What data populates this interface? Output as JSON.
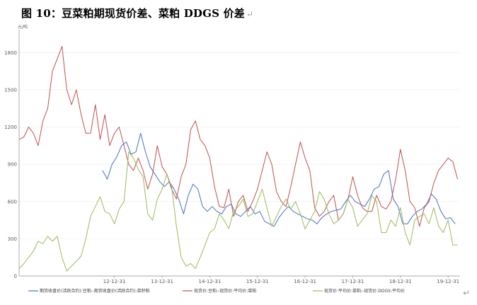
{
  "title": "图 10：豆菜粕期现货价差、菜粕 DDGS 价差",
  "return_mark": "↵",
  "chart_data": {
    "type": "line",
    "unit_label": "元/吨",
    "ylim": [
      0,
      1950
    ],
    "yticks": [
      0,
      300,
      600,
      900,
      1200,
      1500,
      1800
    ],
    "xlim": [
      2011.0,
      2020.25
    ],
    "xticks": [
      {
        "label": "12-12-31",
        "x": 2013.0
      },
      {
        "label": "13-12-31",
        "x": 2014.0
      },
      {
        "label": "14-12-31",
        "x": 2015.0
      },
      {
        "label": "15-12-31",
        "x": 2016.0
      },
      {
        "label": "16-12-31",
        "x": 2017.0
      },
      {
        "label": "17-12-31",
        "x": 2018.0
      },
      {
        "label": "18-12-31",
        "x": 2019.0
      },
      {
        "label": "19-12-31",
        "x": 2020.0
      }
    ],
    "legend_position": "bottom",
    "series": [
      {
        "name": "期货收盘价(活跃合约):豆粕:-期货收盘价(活跃合约):菜籽粕",
        "color": "#4472c4",
        "x": [
          2012.75,
          2012.85,
          2012.95,
          2013.05,
          2013.15,
          2013.25,
          2013.35,
          2013.45,
          2013.55,
          2013.65,
          2013.75,
          2013.85,
          2013.95,
          2014.05,
          2014.15,
          2014.25,
          2014.35,
          2014.45,
          2014.55,
          2014.65,
          2014.75,
          2014.85,
          2014.95,
          2015.05,
          2015.15,
          2015.25,
          2015.35,
          2015.45,
          2015.55,
          2015.65,
          2015.75,
          2015.85,
          2015.95,
          2016.05,
          2016.15,
          2016.25,
          2016.35,
          2016.45,
          2016.55,
          2016.65,
          2016.75,
          2016.85,
          2016.95,
          2017.05,
          2017.15,
          2017.25,
          2017.35,
          2017.45,
          2017.55,
          2017.65,
          2017.75,
          2017.85,
          2017.95,
          2018.05,
          2018.15,
          2018.25,
          2018.35,
          2018.45,
          2018.55,
          2018.65,
          2018.75,
          2018.85,
          2018.95,
          2019.05,
          2019.15,
          2019.25,
          2019.35,
          2019.45,
          2019.55,
          2019.65,
          2019.75,
          2019.85,
          2019.95,
          2020.05,
          2020.15
        ],
        "y": [
          850,
          780,
          900,
          960,
          1050,
          1080,
          980,
          1000,
          1150,
          1000,
          880,
          820,
          760,
          720,
          760,
          700,
          620,
          500,
          650,
          740,
          700,
          560,
          520,
          560,
          520,
          500,
          560,
          580,
          500,
          480,
          520,
          560,
          500,
          520,
          440,
          420,
          400,
          470,
          520,
          560,
          520,
          500,
          480,
          460,
          450,
          420,
          470,
          500,
          520,
          530,
          540,
          600,
          650,
          600,
          580,
          560,
          620,
          700,
          720,
          820,
          850,
          620,
          560,
          420,
          420,
          480,
          520,
          540,
          580,
          660,
          620,
          520,
          460,
          470,
          420
        ]
      },
      {
        "name": "现货价:豆粕:-现货价:平均价:菜粕",
        "color": "#c0504d",
        "x": [
          2011.0,
          2011.1,
          2011.2,
          2011.3,
          2011.4,
          2011.5,
          2011.6,
          2011.7,
          2011.8,
          2011.9,
          2012.0,
          2012.1,
          2012.2,
          2012.3,
          2012.4,
          2012.5,
          2012.6,
          2012.7,
          2012.8,
          2012.9,
          2013.0,
          2013.1,
          2013.2,
          2013.3,
          2013.4,
          2013.5,
          2013.6,
          2013.7,
          2013.8,
          2013.9,
          2014.0,
          2014.1,
          2014.2,
          2014.3,
          2014.4,
          2014.5,
          2014.6,
          2014.7,
          2014.8,
          2014.9,
          2015.0,
          2015.1,
          2015.2,
          2015.3,
          2015.4,
          2015.5,
          2015.6,
          2015.7,
          2015.8,
          2015.9,
          2016.0,
          2016.1,
          2016.2,
          2016.3,
          2016.4,
          2016.5,
          2016.6,
          2016.7,
          2016.8,
          2016.9,
          2017.0,
          2017.1,
          2017.2,
          2017.3,
          2017.4,
          2017.5,
          2017.6,
          2017.7,
          2017.8,
          2017.9,
          2018.0,
          2018.1,
          2018.2,
          2018.3,
          2018.4,
          2018.5,
          2018.6,
          2018.7,
          2018.8,
          2018.9,
          2019.0,
          2019.1,
          2019.2,
          2019.3,
          2019.4,
          2019.5,
          2019.6,
          2019.7,
          2019.8,
          2019.9,
          2020.0,
          2020.1,
          2020.2
        ],
        "y": [
          1100,
          1120,
          1200,
          1150,
          1050,
          1250,
          1350,
          1650,
          1750,
          1850,
          1500,
          1380,
          1500,
          1300,
          1150,
          1150,
          1380,
          1100,
          1300,
          1050,
          1150,
          1200,
          1050,
          900,
          850,
          950,
          850,
          700,
          820,
          1050,
          880,
          820,
          700,
          620,
          800,
          900,
          1180,
          1250,
          1100,
          1050,
          950,
          720,
          560,
          550,
          700,
          480,
          600,
          650,
          520,
          600,
          700,
          850,
          1000,
          900,
          680,
          600,
          560,
          720,
          900,
          1080,
          950,
          850,
          550,
          480,
          520,
          600,
          650,
          450,
          500,
          620,
          800,
          650,
          550,
          520,
          520,
          650,
          560,
          540,
          600,
          780,
          1020,
          850,
          600,
          550,
          400,
          550,
          600,
          750,
          850,
          900,
          950,
          920,
          780
        ]
      },
      {
        "name": "现货价:平均价:菜粕:-现货价:DDGS:平均价",
        "color": "#9bbb59",
        "x": [
          2011.0,
          2011.1,
          2011.2,
          2011.3,
          2011.4,
          2011.5,
          2011.6,
          2011.7,
          2011.8,
          2011.9,
          2012.0,
          2012.1,
          2012.2,
          2012.3,
          2012.4,
          2012.5,
          2012.6,
          2012.7,
          2012.8,
          2012.9,
          2013.0,
          2013.1,
          2013.2,
          2013.3,
          2013.4,
          2013.5,
          2013.6,
          2013.7,
          2013.8,
          2013.9,
          2014.0,
          2014.1,
          2014.2,
          2014.3,
          2014.4,
          2014.5,
          2014.6,
          2014.7,
          2014.8,
          2014.9,
          2015.0,
          2015.1,
          2015.2,
          2015.3,
          2015.4,
          2015.5,
          2015.6,
          2015.7,
          2015.8,
          2015.9,
          2016.0,
          2016.1,
          2016.2,
          2016.3,
          2016.4,
          2016.5,
          2016.6,
          2016.7,
          2016.8,
          2016.9,
          2017.0,
          2017.1,
          2017.2,
          2017.3,
          2017.4,
          2017.5,
          2017.6,
          2017.7,
          2017.8,
          2017.9,
          2018.0,
          2018.1,
          2018.2,
          2018.3,
          2018.4,
          2018.5,
          2018.6,
          2018.7,
          2018.8,
          2018.9,
          2019.0,
          2019.1,
          2019.2,
          2019.3,
          2019.4,
          2019.5,
          2019.6,
          2019.7,
          2019.8,
          2019.9,
          2020.0,
          2020.1,
          2020.2
        ],
        "y": [
          60,
          100,
          150,
          200,
          280,
          260,
          320,
          280,
          320,
          150,
          40,
          80,
          120,
          160,
          300,
          480,
          560,
          640,
          520,
          500,
          420,
          540,
          600,
          1000,
          950,
          860,
          800,
          500,
          450,
          620,
          700,
          820,
          720,
          400,
          150,
          80,
          100,
          60,
          150,
          250,
          350,
          380,
          500,
          450,
          380,
          520,
          560,
          620,
          480,
          500,
          600,
          700,
          550,
          400,
          480,
          560,
          620,
          540,
          600,
          500,
          380,
          450,
          520,
          680,
          620,
          500,
          420,
          450,
          500,
          620,
          550,
          400,
          450,
          500,
          650,
          600,
          350,
          350,
          450,
          400,
          550,
          350,
          250,
          450,
          480,
          500,
          420,
          550,
          400,
          350,
          450,
          250,
          250
        ]
      }
    ]
  }
}
